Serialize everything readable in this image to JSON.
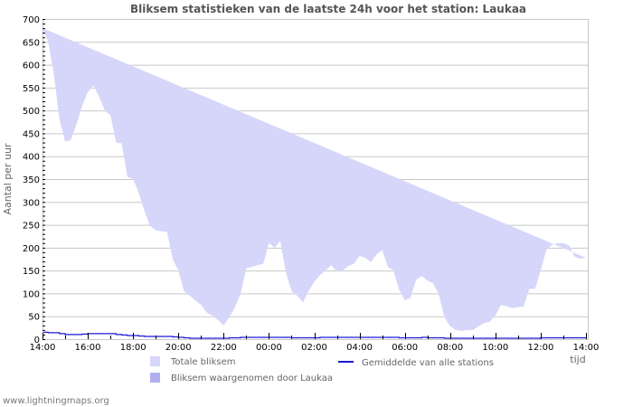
{
  "chart_data": {
    "type": "area",
    "title": "Bliksem statistieken van de laatste 24h voor het station: Laukaa",
    "xlabel": "tijd",
    "ylabel": "Aantal per uur",
    "ylim": [
      0,
      700
    ],
    "yticks": [
      0,
      50,
      100,
      150,
      200,
      250,
      300,
      350,
      400,
      450,
      500,
      550,
      600,
      650,
      700
    ],
    "xtick_labels": [
      "14:00",
      "16:00",
      "18:00",
      "20:00",
      "22:00",
      "00:00",
      "02:00",
      "04:00",
      "06:00",
      "08:00",
      "10:00",
      "12:00",
      "14:00"
    ],
    "grid": true,
    "legend_position": "bottom",
    "x_hours": [
      0,
      0.25,
      0.5,
      0.75,
      1,
      1.25,
      1.5,
      1.75,
      2,
      2.25,
      2.5,
      2.75,
      3,
      3.25,
      3.5,
      3.75,
      4,
      4.25,
      4.5,
      4.75,
      5,
      5.25,
      5.5,
      5.75,
      6,
      6.25,
      6.5,
      6.75,
      7,
      7.25,
      7.5,
      7.75,
      8,
      8.25,
      8.5,
      8.75,
      9,
      9.25,
      9.5,
      9.75,
      10,
      10.25,
      10.5,
      10.75,
      11,
      11.25,
      11.5,
      11.75,
      12,
      12.25,
      12.5,
      12.75,
      13,
      13.25,
      13.5,
      13.75,
      14,
      14.25,
      14.5,
      14.75,
      15,
      15.25,
      15.5,
      15.75,
      16,
      16.25,
      16.5,
      16.75,
      17,
      17.25,
      17.5,
      17.75,
      18,
      18.25,
      18.5,
      18.75,
      19,
      19.25,
      19.5,
      19.75,
      20,
      20.25,
      20.5,
      20.75,
      21,
      21.25,
      21.5,
      21.75,
      22,
      22.25,
      22.5,
      22.75,
      23,
      23.25,
      23.5,
      23.75,
      24
    ],
    "series": [
      {
        "name": "Totale bliksem",
        "color": "#d6d6fa",
        "values": [
          680,
          650,
          580,
          480,
          432,
          435,
          470,
          510,
          540,
          555,
          530,
          500,
          490,
          430,
          428,
          355,
          350,
          320,
          280,
          248,
          238,
          236,
          235,
          175,
          150,
          105,
          95,
          85,
          75,
          58,
          52,
          42,
          30,
          48,
          70,
          100,
          155,
          158,
          162,
          165,
          210,
          200,
          215,
          145,
          105,
          95,
          80,
          105,
          125,
          140,
          150,
          162,
          148,
          150,
          160,
          165,
          182,
          178,
          168,
          185,
          195,
          158,
          150,
          108,
          85,
          90,
          130,
          138,
          128,
          122,
          98,
          48,
          28,
          20,
          18,
          20,
          20,
          28,
          35,
          38,
          52,
          75,
          72,
          68,
          70,
          72,
          110,
          110,
          150,
          195,
          206,
          210,
          210,
          205,
          180,
          176,
          178,
          178,
          178
        ]
      },
      {
        "name": "Bliksem waargenomen door Laukaa",
        "color": "#b0b0f0",
        "values": [
          0,
          0,
          0,
          0,
          0,
          0,
          0,
          0,
          0,
          0,
          0,
          0,
          0,
          0,
          0,
          0,
          0,
          0,
          0,
          0,
          0,
          0,
          0,
          0,
          0,
          0,
          0,
          0,
          0,
          0,
          0,
          0,
          0,
          0,
          0,
          0,
          0,
          0,
          0,
          0,
          0,
          0,
          0,
          0,
          0,
          0,
          0,
          0,
          0,
          0,
          0,
          0,
          0,
          0,
          0,
          0,
          0,
          0,
          0,
          0,
          0,
          0,
          0,
          0,
          0,
          0,
          0,
          0,
          0,
          0,
          0,
          0,
          0,
          0,
          0,
          0,
          0,
          0,
          0,
          0,
          0,
          0,
          0,
          0,
          0,
          0,
          0,
          0,
          0,
          0,
          0,
          0,
          0,
          0,
          0,
          0,
          0,
          0,
          0
        ]
      },
      {
        "name": "Gemiddelde van alle stations",
        "color": "#1a1ad6",
        "values": [
          15,
          14,
          14,
          12,
          10,
          10,
          10,
          11,
          12,
          12,
          12,
          12,
          12,
          10,
          9,
          8,
          8,
          7,
          6,
          6,
          6,
          6,
          6,
          5,
          4,
          3,
          2,
          2,
          2,
          2,
          2,
          2,
          2,
          3,
          3,
          4,
          4,
          4,
          4,
          4,
          4,
          4,
          4,
          4,
          3,
          3,
          3,
          3,
          3,
          4,
          4,
          4,
          4,
          4,
          4,
          4,
          4,
          4,
          4,
          4,
          4,
          4,
          4,
          3,
          3,
          3,
          3,
          4,
          3,
          3,
          3,
          2,
          2,
          2,
          2,
          2,
          2,
          2,
          2,
          2,
          2,
          2,
          2,
          2,
          2,
          2,
          2,
          2,
          3,
          3,
          3,
          3,
          3,
          3,
          3,
          3,
          3,
          3,
          3
        ]
      }
    ]
  },
  "legend": {
    "items": [
      {
        "label": "Totale bliksem",
        "type": "swatch",
        "color": "#d6d6fa"
      },
      {
        "label": "Gemiddelde van alle stations",
        "type": "line",
        "color": "#1a1ad6"
      },
      {
        "label": "Bliksem waargenomen door Laukaa",
        "type": "swatch",
        "color": "#b0b0f0"
      }
    ]
  },
  "footer": {
    "text": "www.lightningmaps.org"
  },
  "colors": {
    "grid": "#c8c8c8",
    "frame": "#c8c8c8",
    "axis": "#000000"
  }
}
